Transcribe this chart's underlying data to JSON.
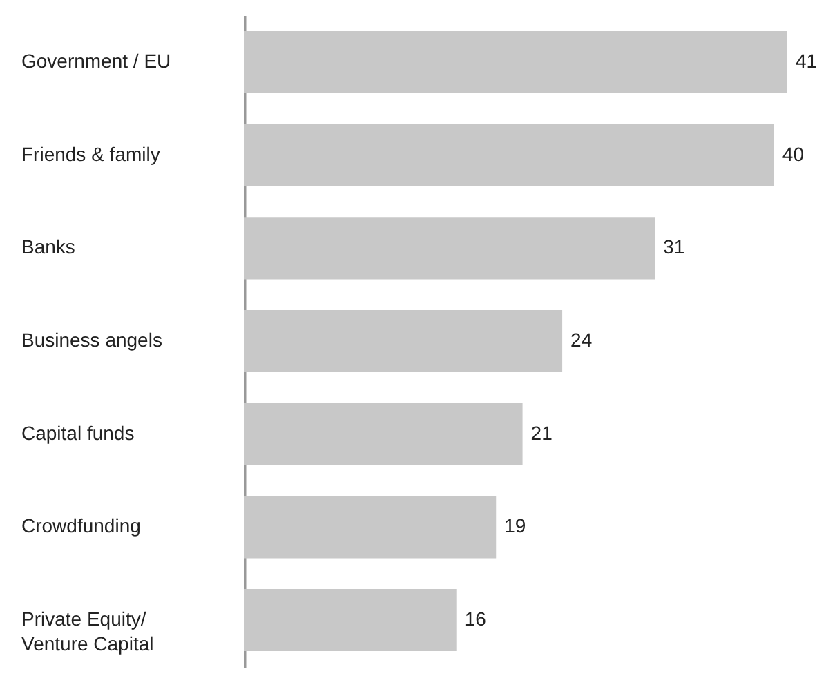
{
  "chart_data": {
    "type": "bar",
    "orientation": "horizontal",
    "categories": [
      "Government / EU",
      "Friends & family",
      "Banks",
      "Business angels",
      "Capital funds",
      "Crowdfunding",
      "Private Equity/\nVenture Capital"
    ],
    "values": [
      41,
      40,
      31,
      24,
      21,
      19,
      16
    ],
    "color": "#c8c8c8",
    "data_labels": true
  }
}
